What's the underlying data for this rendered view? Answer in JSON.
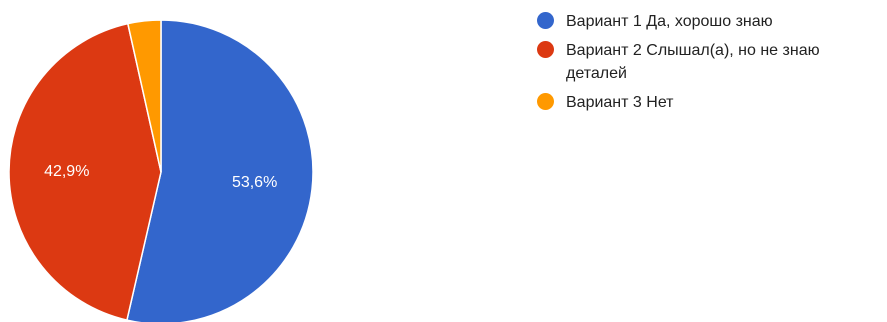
{
  "chart_data": {
    "type": "pie",
    "title": "",
    "start_angle_deg": 90,
    "direction": "clockwise",
    "slices": [
      {
        "label": "Вариант 1 Да, хорошо знаю",
        "value": 53.6,
        "display": "53,6%",
        "color": "#3366cc"
      },
      {
        "label": "Вариант 2 Слышал(а), но не знаю деталей",
        "value": 42.9,
        "display": "42,9%",
        "color": "#dc3912"
      },
      {
        "label": "Вариант 3 Нет",
        "value": 3.5,
        "display": "",
        "color": "#ff9900"
      }
    ],
    "legend": {
      "position": "right",
      "items": [
        {
          "label": "Вариант 1 Да, хорошо знаю",
          "color": "#3366cc"
        },
        {
          "label": "Вариант 2 Слышал(а), но не знаю деталей",
          "color": "#dc3912"
        },
        {
          "label": "Вариант 3 Нет",
          "color": "#ff9900"
        }
      ]
    }
  }
}
